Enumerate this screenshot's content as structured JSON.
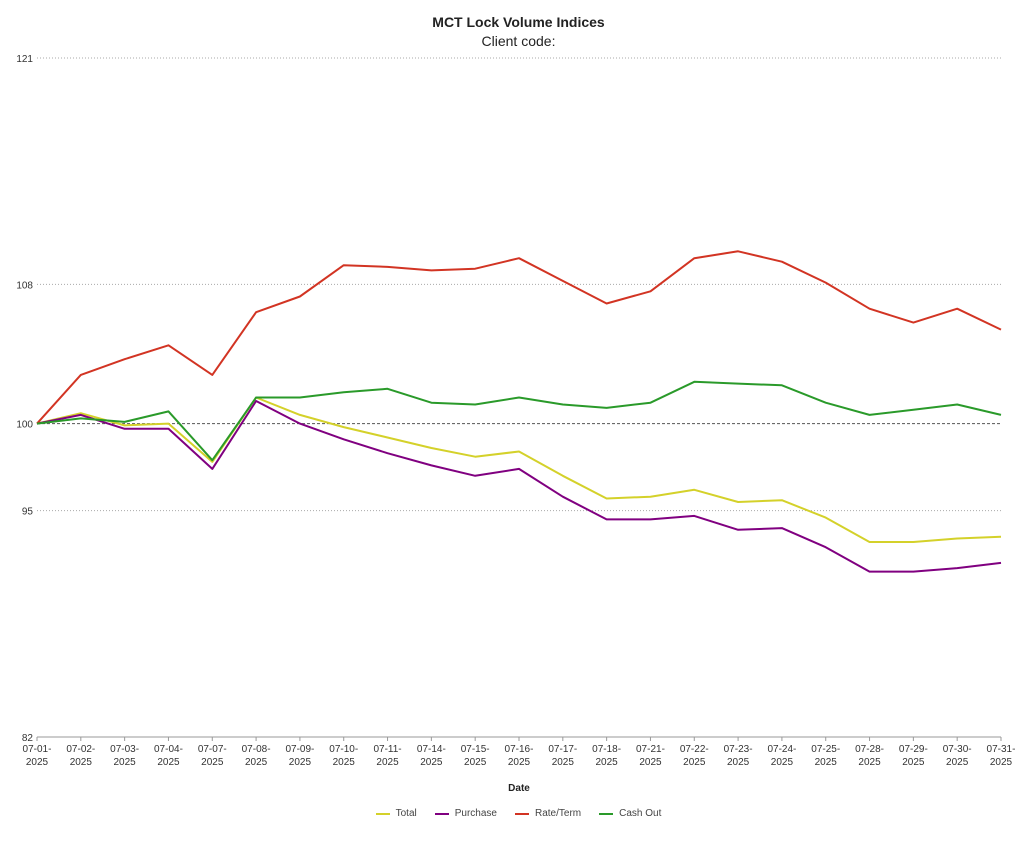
{
  "chart_data": {
    "type": "line",
    "title": "MCT Lock Volume Indices",
    "subtitle": "Client code:",
    "xlabel": "Date",
    "ylabel": "",
    "ylim": [
      82,
      121
    ],
    "yticks": [
      82,
      95,
      100,
      108,
      121
    ],
    "baseline": 100,
    "grid": true,
    "legend_position": "bottom",
    "categories": [
      "07-01-2025",
      "07-02-2025",
      "07-03-2025",
      "07-04-2025",
      "07-07-2025",
      "07-08-2025",
      "07-09-2025",
      "07-10-2025",
      "07-11-2025",
      "07-14-2025",
      "07-15-2025",
      "07-16-2025",
      "07-17-2025",
      "07-18-2025",
      "07-21-2025",
      "07-22-2025",
      "07-23-2025",
      "07-24-2025",
      "07-25-2025",
      "07-28-2025",
      "07-29-2025",
      "07-30-2025",
      "07-31-2025"
    ],
    "series": [
      {
        "name": "Total",
        "color": "#d4d12a",
        "values": [
          100,
          100.6,
          99.9,
          100,
          97.8,
          101.5,
          100.5,
          99.8,
          99.2,
          98.6,
          98.1,
          98.4,
          97,
          95.7,
          95.8,
          96.2,
          95.5,
          95.6,
          94.6,
          93.2,
          93.2,
          93.4,
          93.5
        ]
      },
      {
        "name": "Purchase",
        "color": "#800080",
        "values": [
          100,
          100.5,
          99.7,
          99.7,
          97.4,
          101.3,
          100,
          99.1,
          98.3,
          97.6,
          97,
          97.4,
          95.8,
          94.5,
          94.5,
          94.7,
          93.9,
          94,
          92.9,
          91.5,
          91.5,
          91.7,
          92
        ]
      },
      {
        "name": "Rate/Term",
        "color": "#d23423",
        "values": [
          100,
          102.8,
          103.7,
          104.5,
          102.8,
          106.4,
          107.3,
          109.1,
          109,
          108.8,
          108.9,
          109.5,
          108.2,
          106.9,
          107.6,
          109.5,
          109.9,
          109.3,
          108.1,
          106.6,
          105.8,
          106.6,
          105.4
        ]
      },
      {
        "name": "Cash Out",
        "color": "#2a9a2a",
        "values": [
          100,
          100.3,
          100.1,
          100.7,
          97.9,
          101.5,
          101.5,
          101.8,
          102,
          101.2,
          101.1,
          101.5,
          101.1,
          100.9,
          101.2,
          102.4,
          102.3,
          102.2,
          101.2,
          100.5,
          100.8,
          101.1,
          100.5
        ]
      }
    ]
  }
}
